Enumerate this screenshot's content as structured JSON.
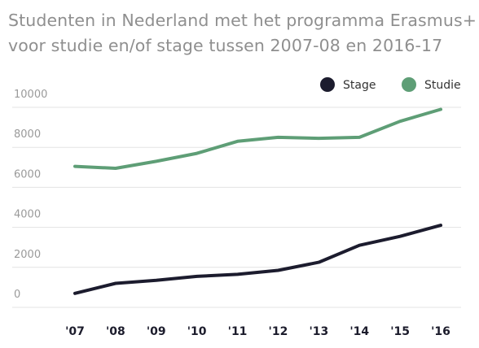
{
  "title_line1": "Studenten in Nederland met het programma Erasmus+",
  "title_line2": "voor studie en/of stage tussen 2007-08 en 2016-17",
  "chart_data": {
    "type": "line",
    "title": "Studenten in Nederland met het programma Erasmus+ voor studie en/of stage tussen 2007-08 en 2016-17",
    "categories": [
      "'07",
      "'08",
      "'09",
      "'10",
      "'11",
      "'12",
      "'13",
      "'14",
      "'15",
      "'16"
    ],
    "series": [
      {
        "name": "Stage",
        "color": "#1c1c2e",
        "values": [
          700,
          1200,
          1350,
          1550,
          1650,
          1850,
          2250,
          3100,
          3550,
          4100
        ]
      },
      {
        "name": "Studie",
        "color": "#5e9e76",
        "values": [
          7050,
          6950,
          7300,
          7700,
          8300,
          8500,
          8450,
          8500,
          9300,
          9900
        ]
      }
    ],
    "yticks": [
      "10000",
      "8000",
      "6000",
      "4000",
      "2000",
      "0"
    ],
    "ylim": [
      0,
      10000
    ],
    "grid": true,
    "legend_position": "top-right"
  }
}
